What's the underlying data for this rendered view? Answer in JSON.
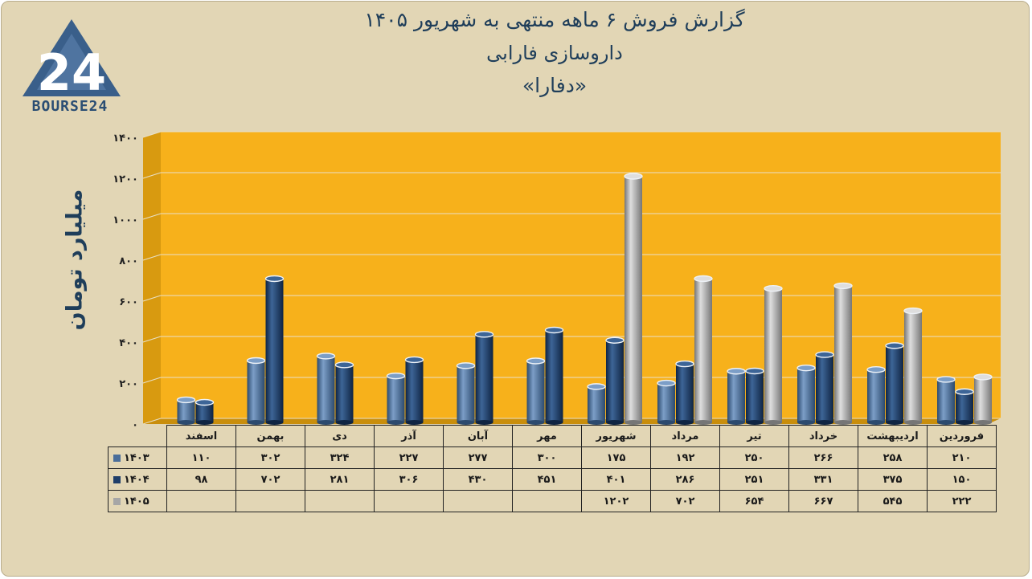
{
  "title": {
    "line1": "گزارش  فروش ۶ ماهه منتهی به شهریور ۱۴۰۵",
    "line2": "داروسازی فارابی",
    "line3": "«دفارا»"
  },
  "logo": {
    "text": "BOURSE24",
    "mark": "24"
  },
  "colors": {
    "panel_background": "#e2d6b5",
    "plot_background": "#f7b11b",
    "series_1403": "#4a6e9a",
    "series_1404": "#1f3e69",
    "series_1405": "#a6a6a6",
    "text": "#1f3e5a"
  },
  "chart_data": {
    "type": "bar",
    "title": "گزارش  فروش ۶ ماهه منتهی به شهریور ۱۴۰۵",
    "subtitle": "داروسازی فارابی «دفارا»",
    "xlabel": "",
    "ylabel": "میلیارد تومان",
    "ylim": [
      0,
      1400
    ],
    "yticks": [
      "۰",
      "۲۰۰",
      "۴۰۰",
      "۶۰۰",
      "۸۰۰",
      "۱۰۰۰",
      "۱۲۰۰",
      "۱۴۰۰"
    ],
    "grid": true,
    "legend": "table-rows",
    "categories": [
      "فروردین",
      "اردیبهشت",
      "خرداد",
      "تیر",
      "مرداد",
      "شهریور",
      "مهر",
      "آبان",
      "آذر",
      "دی",
      "بهمن",
      "اسفند"
    ],
    "series": [
      {
        "name": "۱۴۰۳",
        "values": [
          210,
          258,
          266,
          250,
          192,
          175,
          300,
          277,
          227,
          324,
          302,
          110
        ],
        "labels": [
          "۲۱۰",
          "۲۵۸",
          "۲۶۶",
          "۲۵۰",
          "۱۹۲",
          "۱۷۵",
          "۳۰۰",
          "۲۷۷",
          "۲۲۷",
          "۳۲۴",
          "۳۰۲",
          "۱۱۰"
        ]
      },
      {
        "name": "۱۴۰۴",
        "values": [
          150,
          375,
          331,
          251,
          286,
          401,
          451,
          430,
          306,
          281,
          702,
          98
        ],
        "labels": [
          "۱۵۰",
          "۳۷۵",
          "۳۳۱",
          "۲۵۱",
          "۲۸۶",
          "۴۰۱",
          "۴۵۱",
          "۴۳۰",
          "۳۰۶",
          "۲۸۱",
          "۷۰۲",
          "۹۸"
        ]
      },
      {
        "name": "۱۴۰۵",
        "values": [
          222,
          545,
          667,
          654,
          702,
          1202,
          null,
          null,
          null,
          null,
          null,
          null
        ],
        "labels": [
          "۲۲۲",
          "۵۴۵",
          "۶۶۷",
          "۶۵۴",
          "۷۰۲",
          "۱۲۰۲",
          "",
          "",
          "",
          "",
          "",
          ""
        ]
      }
    ]
  }
}
